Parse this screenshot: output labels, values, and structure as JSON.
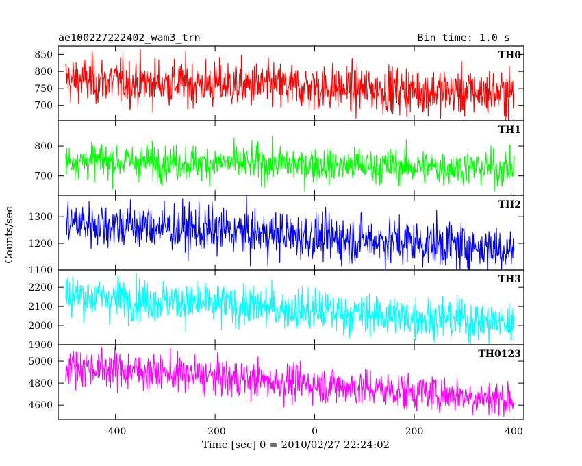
{
  "header": {
    "left_title": "ae100227222402_wam3_trn",
    "right_title": "Bin time: 1.0 s"
  },
  "chart_data": {
    "type": "line",
    "xlabel": "Time [sec] 0 = 2010/02/27 22:24:02",
    "ylabel": "Counts/sec",
    "xlim": [
      -515,
      420
    ],
    "x_ticks": [
      -400,
      -200,
      0,
      200,
      400
    ],
    "x_range_data": [
      -500,
      400
    ],
    "bin_time_s": 1.0,
    "panels": [
      {
        "name": "TH0",
        "color": "#ff0000",
        "ylim": [
          655,
          875
        ],
        "y_ticks": [
          700,
          750,
          800,
          850
        ],
        "trend_start": 775,
        "trend_end": 735,
        "noise_sigma": 35
      },
      {
        "name": "TH1",
        "color": "#00ff00",
        "ylim": [
          635,
          885
        ],
        "y_ticks": [
          700,
          800
        ],
        "trend_start": 752,
        "trend_end": 725,
        "noise_sigma": 30
      },
      {
        "name": "TH2",
        "color": "#0000ff",
        "ylim": [
          1100,
          1380
        ],
        "y_ticks": [
          1100,
          1200,
          1300
        ],
        "trend_start": 1280,
        "trend_end": 1180,
        "noise_sigma": 45
      },
      {
        "name": "TH3",
        "color": "#00ffff",
        "ylim": [
          1900,
          2290
        ],
        "y_ticks": [
          1900,
          2000,
          2100,
          2200
        ],
        "trend_start": 2160,
        "trend_end": 2010,
        "noise_sigma": 55
      },
      {
        "name": "TH0123",
        "color": "#ff00ff",
        "ylim": [
          4470,
          5150
        ],
        "y_ticks": [
          4600,
          4800,
          5000
        ],
        "trend_start": 4960,
        "trend_end": 4650,
        "noise_sigma": 85
      }
    ]
  }
}
